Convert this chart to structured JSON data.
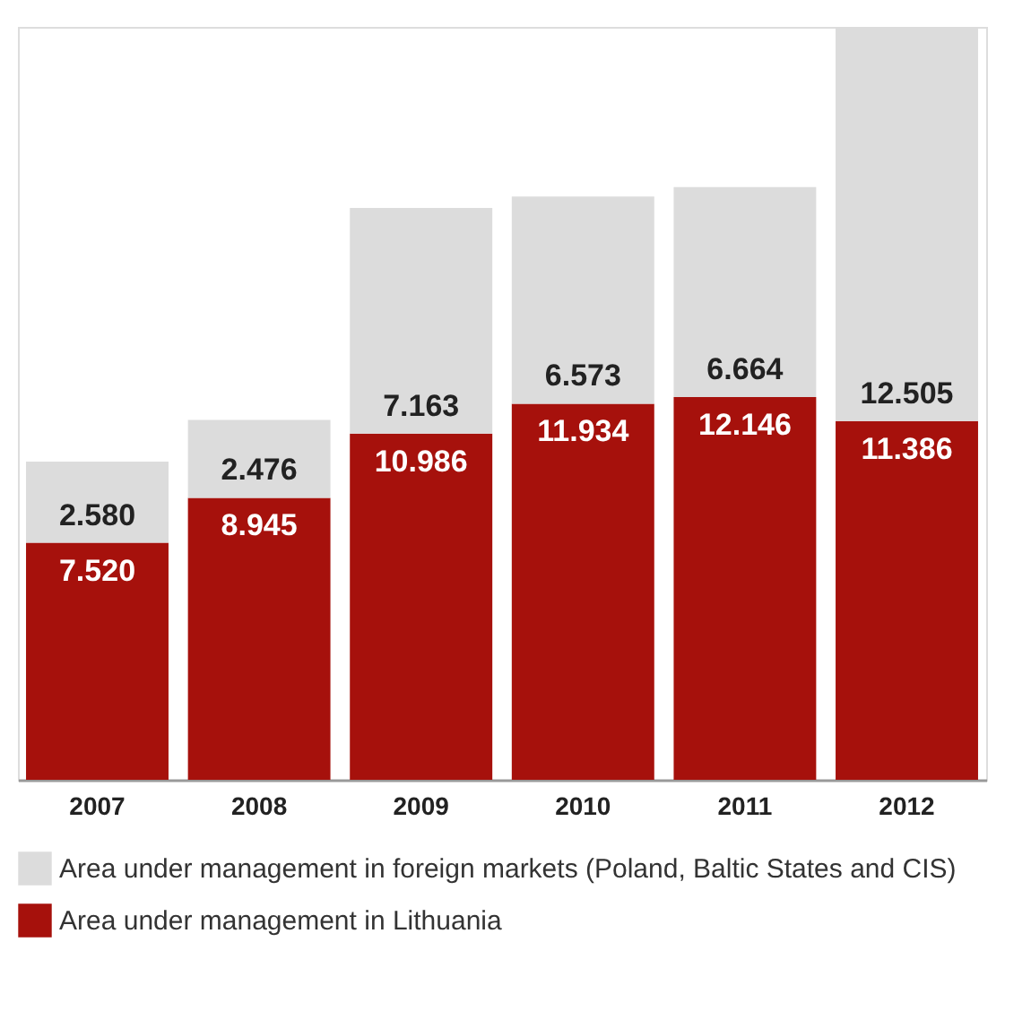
{
  "chart_data": {
    "type": "bar",
    "stacked": true,
    "categories": [
      "2007",
      "2008",
      "2009",
      "2010",
      "2011",
      "2012"
    ],
    "series": [
      {
        "name": "Area under management in Lithuania",
        "color": "#a6110c",
        "values": [
          7.52,
          8.945,
          10.986,
          11.934,
          12.146,
          11.386
        ],
        "value_labels": [
          "7.520",
          "8.945",
          "10.986",
          "11.934",
          "12.146",
          "11.386"
        ]
      },
      {
        "name": "Area under management in foreign markets (Poland, Baltic States and CIS)",
        "color": "#dcdcdc",
        "values": [
          2.58,
          2.476,
          7.163,
          6.573,
          6.664,
          12.505
        ],
        "value_labels": [
          "2.580",
          "2.476",
          "7.163",
          "6.573",
          "6.664",
          "12.505"
        ]
      }
    ],
    "legend": "bottom",
    "grid": false
  }
}
